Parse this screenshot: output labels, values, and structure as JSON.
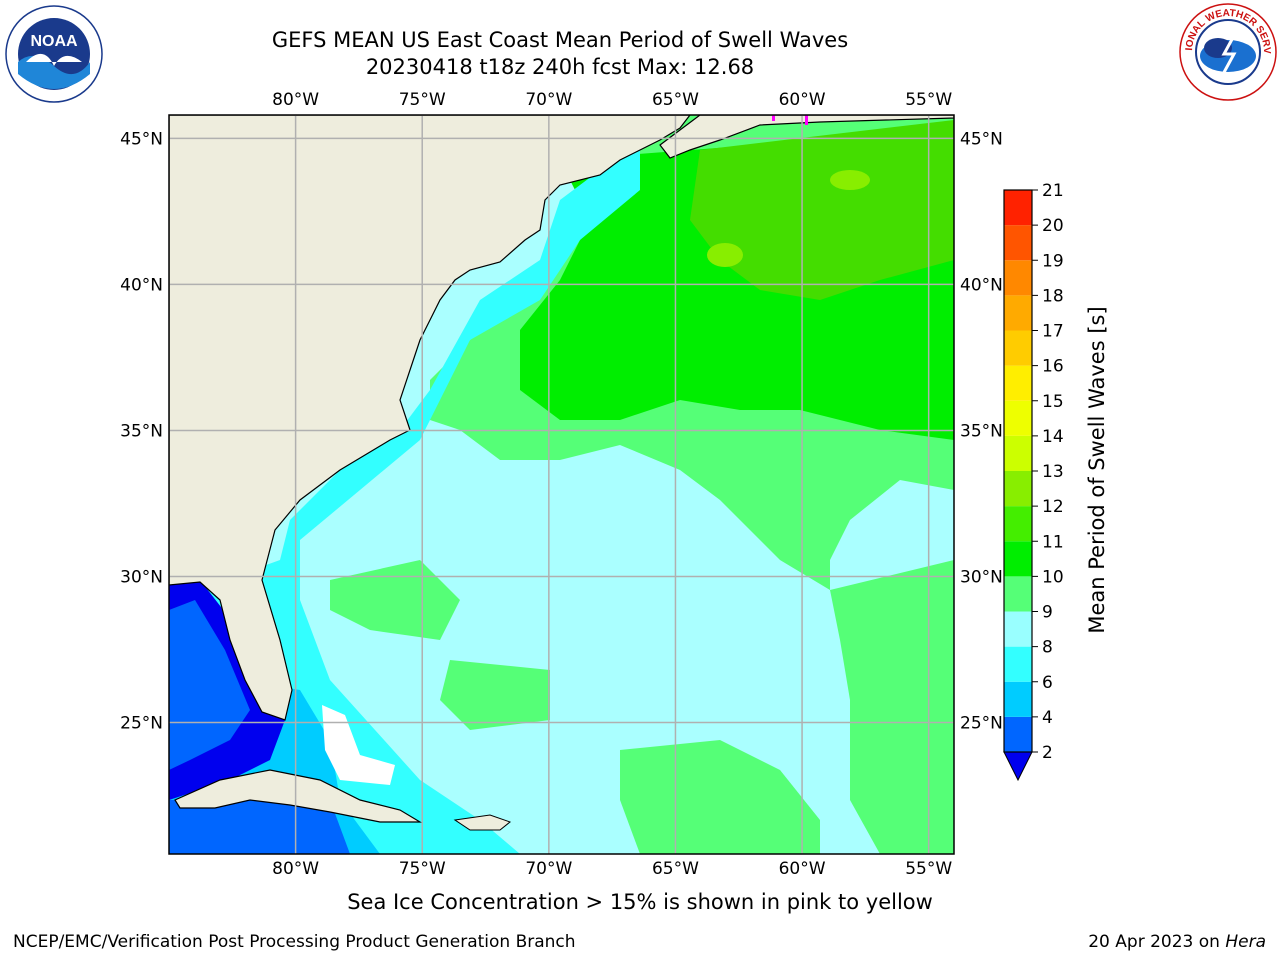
{
  "header": {
    "title_line1": "GEFS MEAN US East Coast Mean Period of Swell Waves",
    "title_line2": "20230418 t18z 240h fcst   Max: 12.68",
    "noaa_logo_text": "NOAA",
    "nws_logo_text": "NATIONAL WEATHER SERVICE"
  },
  "map": {
    "lon_range": [
      -85,
      -54
    ],
    "lat_range": [
      20.5,
      45.8
    ],
    "lon_ticks": [
      {
        "value": -80,
        "label": "80°W"
      },
      {
        "value": -75,
        "label": "75°W"
      },
      {
        "value": -70,
        "label": "70°W"
      },
      {
        "value": -65,
        "label": "65°W"
      },
      {
        "value": -60,
        "label": "60°W"
      },
      {
        "value": -55,
        "label": "55°W"
      }
    ],
    "lat_ticks": [
      {
        "value": 45,
        "label": "45°N"
      },
      {
        "value": 40,
        "label": "40°N"
      },
      {
        "value": 35,
        "label": "35°N"
      },
      {
        "value": 30,
        "label": "30°N"
      },
      {
        "value": 25,
        "label": "25°N"
      }
    ],
    "grid": true,
    "colors": {
      "land": "#eeeddd",
      "coast": "#000000",
      "grid": "#b0b0b0",
      "sea_ice": "#ff00ff"
    }
  },
  "colorbar": {
    "label": "Mean Period of Swell Waves [s]",
    "levels": [
      2,
      4,
      6,
      8,
      9,
      10,
      11,
      12,
      13,
      14,
      15,
      16,
      17,
      18,
      19,
      20,
      21
    ],
    "colors": [
      "#0066ff",
      "#00ccff",
      "#33ffff",
      "#99ffff",
      "#55ff77",
      "#00ee00",
      "#44ee00",
      "#88ee00",
      "#ccff00",
      "#eeff00",
      "#ffee00",
      "#ffcc00",
      "#ffaa00",
      "#ff8800",
      "#ff5500",
      "#ff2200"
    ],
    "underflow_color": "#0000ee"
  },
  "notes": {
    "sea_ice": "Sea Ice Concentration > 15% is shown in pink to yellow"
  },
  "footer": {
    "left": "NCEP/EMC/Verification Post Processing Product Generation Branch",
    "date": "20 Apr 2023 on ",
    "machine": "Hera"
  }
}
